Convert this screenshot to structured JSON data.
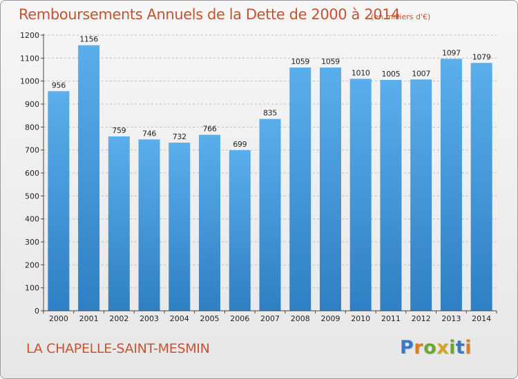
{
  "header": {
    "title": "Remboursements Annuels de la Dette de 2000 à 2014",
    "unit": "(en milliers d'€)"
  },
  "footer": {
    "commune": "LA CHAPELLE-SAINT-MESMIN",
    "logo_text": "Proxiti"
  },
  "colors": {
    "title": "#c8512f",
    "bar_light": "#5aaeea",
    "bar_dark": "#2f7fc4",
    "logo_letters": [
      "#3a78c2",
      "#e07b1f",
      "#6aa832",
      "#d6a21f",
      "#6aa832",
      "#3a78c2",
      "#e07b1f"
    ]
  },
  "chart_data": {
    "type": "bar",
    "categories": [
      "2000",
      "2001",
      "2002",
      "2003",
      "2004",
      "2005",
      "2006",
      "2007",
      "2008",
      "2009",
      "2010",
      "2011",
      "2012",
      "2013",
      "2014"
    ],
    "values": [
      956,
      1156,
      759,
      746,
      732,
      766,
      699,
      835,
      1059,
      1059,
      1010,
      1005,
      1007,
      1097,
      1079
    ],
    "ylim": [
      0,
      1200
    ],
    "yticks": [
      0,
      100,
      200,
      300,
      400,
      500,
      600,
      700,
      800,
      900,
      1000,
      1100,
      1200
    ],
    "grid": true,
    "legend": "none"
  }
}
